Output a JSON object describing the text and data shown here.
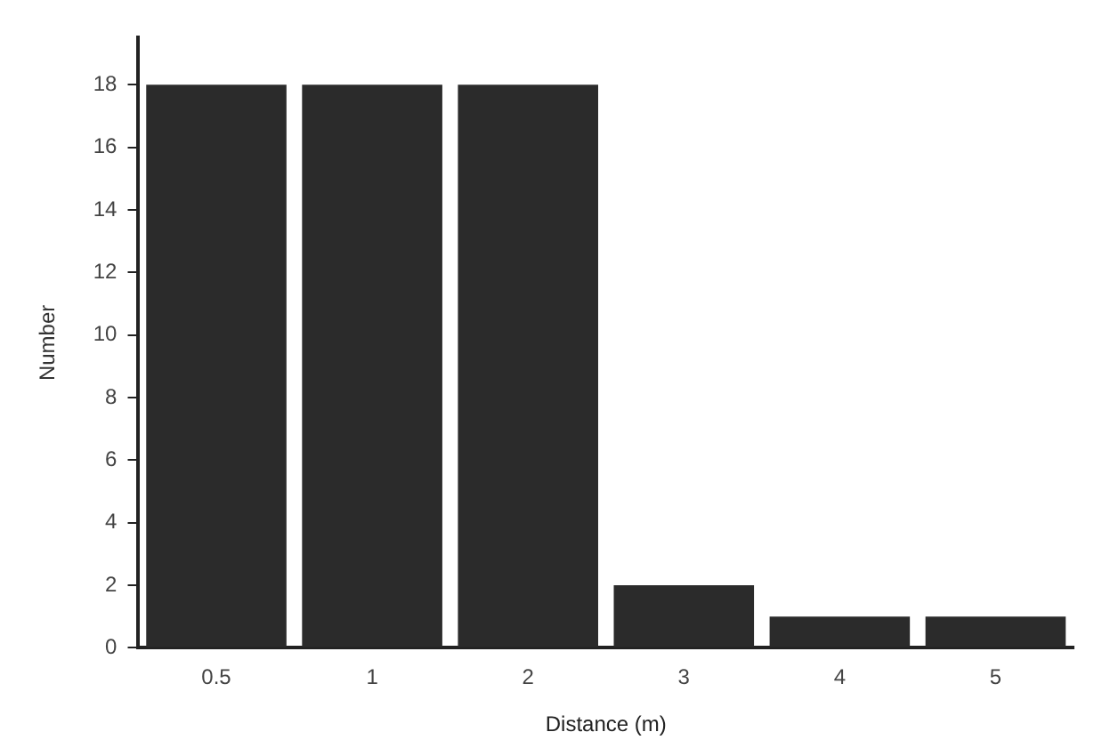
{
  "chart_data": {
    "type": "bar",
    "xlabel": "Distance (m)",
    "ylabel": "Number",
    "categories": [
      "0.5",
      "1",
      "2",
      "3",
      "4",
      "5"
    ],
    "values": [
      18,
      18,
      18,
      2,
      1,
      1
    ],
    "color": "#2b2b2b",
    "ylim": [
      0,
      19.5
    ],
    "yticks": [
      0,
      2,
      4,
      6,
      8,
      10,
      12,
      14,
      16,
      18
    ],
    "grid": false,
    "legend": false
  }
}
